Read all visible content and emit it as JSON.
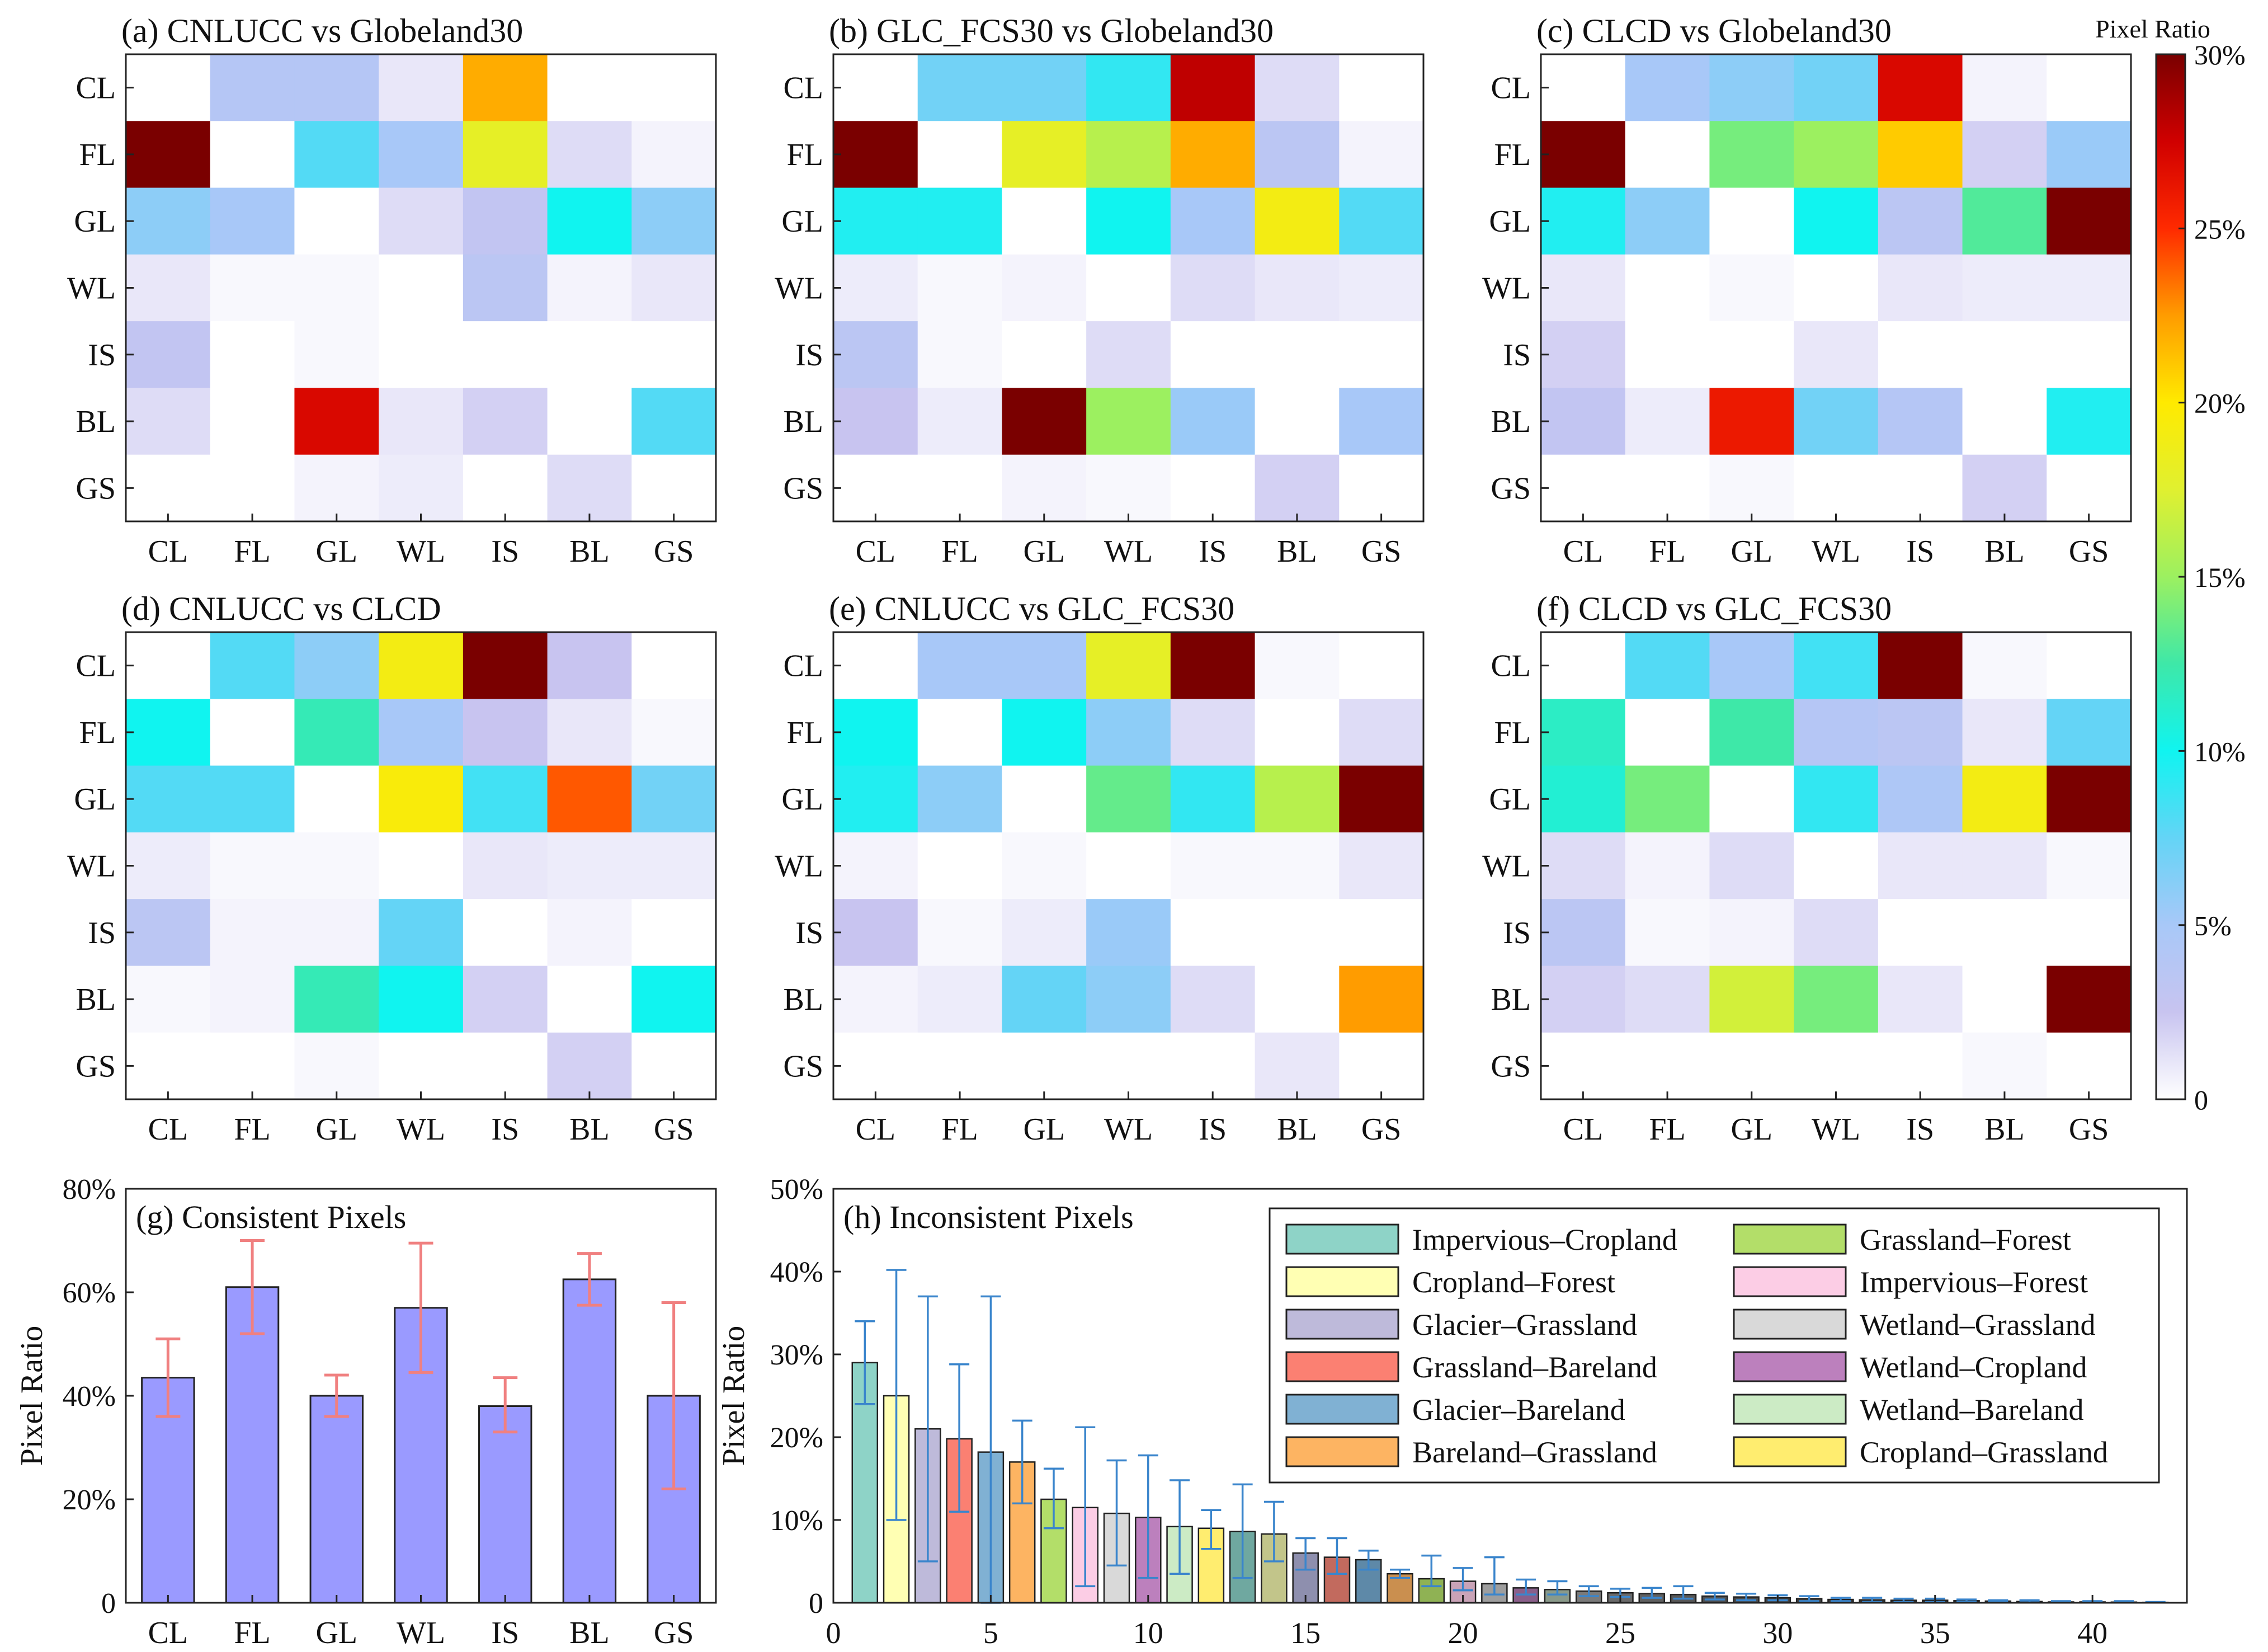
{
  "colors": {
    "gradient": [
      "#ffffff",
      "#c8c4f0",
      "#a8c8f8",
      "#64d4f6",
      "#10f4f0",
      "#3ee8a8",
      "#9cf060",
      "#e0f030",
      "#ffea00",
      "#ff9c00",
      "#ff2a00",
      "#d00000",
      "#7a0000"
    ],
    "bar_g": "#9a9aff",
    "errorbar_g": "#f08080",
    "errorbar_h": "#3a85cc"
  },
  "colorbar": {
    "title": "Pixel Ratio",
    "ticks": [
      "30%",
      "25%",
      "20%",
      "15%",
      "10%",
      "5%",
      "0"
    ],
    "tick_values": [
      30,
      25,
      20,
      15,
      10,
      5,
      0
    ],
    "max": 30
  },
  "chart_data": [
    {
      "type": "heatmap",
      "panel": "a",
      "title": "(a) CNLUCC vs Globeland30",
      "rows": [
        "CL",
        "FL",
        "GL",
        "WL",
        "IS",
        "BL",
        "GS"
      ],
      "cols": [
        "CL",
        "FL",
        "GL",
        "WL",
        "IS",
        "BL",
        "GS"
      ],
      "values": [
        [
          0,
          4,
          4,
          1,
          22,
          0,
          0
        ],
        [
          30,
          0,
          8,
          5,
          18,
          1.5,
          0.5
        ],
        [
          6,
          5,
          0,
          1.5,
          3,
          10,
          6
        ],
        [
          1,
          0.3,
          0.3,
          0,
          3.5,
          0.5,
          1
        ],
        [
          3,
          0,
          0.3,
          0,
          0,
          0,
          0
        ],
        [
          1.5,
          0,
          27,
          1,
          2,
          0,
          8
        ],
        [
          0,
          0,
          0.5,
          0.8,
          0,
          1.5,
          0
        ]
      ]
    },
    {
      "type": "heatmap",
      "panel": "b",
      "title": "(b) GLC_FCS30 vs Globeland30",
      "rows": [
        "CL",
        "FL",
        "GL",
        "WL",
        "IS",
        "BL",
        "GS"
      ],
      "cols": [
        "CL",
        "FL",
        "GL",
        "WL",
        "IS",
        "BL",
        "GS"
      ],
      "values": [
        [
          0,
          7,
          7,
          9,
          28,
          1.5,
          0
        ],
        [
          30,
          0,
          18,
          16,
          22,
          3.5,
          0.5
        ],
        [
          9.5,
          9.5,
          0,
          10,
          5,
          19,
          8
        ],
        [
          0.8,
          0.3,
          0.5,
          0,
          1.5,
          1,
          0.8
        ],
        [
          3.5,
          0.3,
          0,
          1.5,
          0,
          0,
          0
        ],
        [
          2.5,
          0.8,
          30,
          15,
          5.5,
          0,
          5
        ],
        [
          0,
          0,
          0.5,
          0.3,
          0,
          2,
          0
        ]
      ]
    },
    {
      "type": "heatmap",
      "panel": "c",
      "title": "(c) CLCD vs Globeland30",
      "rows": [
        "CL",
        "FL",
        "GL",
        "WL",
        "IS",
        "BL",
        "GS"
      ],
      "cols": [
        "CL",
        "FL",
        "GL",
        "WL",
        "IS",
        "BL",
        "GS"
      ],
      "values": [
        [
          0,
          5,
          6,
          7,
          27,
          0.5,
          0
        ],
        [
          30,
          0,
          14,
          15,
          21,
          2,
          5.5
        ],
        [
          9.5,
          6,
          0,
          10,
          3.5,
          13,
          30
        ],
        [
          1,
          0,
          0.3,
          0,
          1,
          0.8,
          0.8
        ],
        [
          2,
          0,
          0,
          1,
          0,
          0,
          0
        ],
        [
          3,
          0.8,
          26,
          7,
          4,
          0,
          9.5
        ],
        [
          0,
          0,
          0.3,
          0,
          0,
          2,
          0
        ]
      ]
    },
    {
      "type": "heatmap",
      "panel": "d",
      "title": "(d) CNLUCC vs CLCD",
      "rows": [
        "CL",
        "FL",
        "GL",
        "WL",
        "IS",
        "BL",
        "GS"
      ],
      "cols": [
        "CL",
        "FL",
        "GL",
        "WL",
        "IS",
        "BL",
        "GS"
      ],
      "values": [
        [
          0,
          8,
          6,
          19,
          30,
          2.5,
          0
        ],
        [
          10,
          0,
          12,
          5,
          2.5,
          1,
          0.3
        ],
        [
          8,
          8,
          0,
          19.5,
          8.5,
          24,
          7
        ],
        [
          0.8,
          0.3,
          0.3,
          0,
          1,
          0.8,
          0.8
        ],
        [
          3.5,
          0.5,
          0.5,
          7.5,
          0,
          0.5,
          0
        ],
        [
          0.3,
          0.5,
          12,
          10,
          2,
          0,
          10
        ],
        [
          0,
          0,
          0.3,
          0,
          0,
          2,
          0
        ]
      ]
    },
    {
      "type": "heatmap",
      "panel": "e",
      "title": "(e) CNLUCC vs GLC_FCS30",
      "rows": [
        "CL",
        "FL",
        "GL",
        "WL",
        "IS",
        "BL",
        "GS"
      ],
      "cols": [
        "CL",
        "FL",
        "GL",
        "WL",
        "IS",
        "BL",
        "GS"
      ],
      "values": [
        [
          0,
          5,
          5,
          18,
          30,
          0.3,
          0
        ],
        [
          10,
          0,
          10,
          6,
          1.5,
          0,
          1.5
        ],
        [
          9.5,
          6,
          0,
          13.5,
          9,
          16,
          30
        ],
        [
          0.5,
          0,
          0.3,
          0,
          0.3,
          0.3,
          1
        ],
        [
          2.5,
          0.3,
          0.8,
          5.5,
          0,
          0,
          0
        ],
        [
          0.5,
          0.8,
          7.5,
          6,
          1.5,
          0,
          22.5
        ],
        [
          0,
          0,
          0,
          0,
          0,
          1,
          0
        ]
      ]
    },
    {
      "type": "heatmap",
      "panel": "f",
      "title": "(f) CLCD vs GLC_FCS30",
      "rows": [
        "CL",
        "FL",
        "GL",
        "WL",
        "IS",
        "BL",
        "GS"
      ],
      "cols": [
        "CL",
        "FL",
        "GL",
        "WL",
        "IS",
        "BL",
        "GS"
      ],
      "values": [
        [
          0,
          8,
          5,
          8.5,
          30,
          0.3,
          0
        ],
        [
          11.5,
          0,
          12.5,
          4,
          3.5,
          1,
          7.5
        ],
        [
          11,
          14,
          0,
          9,
          4.5,
          19,
          30
        ],
        [
          1.5,
          0.5,
          1.5,
          0,
          1,
          1,
          0.3
        ],
        [
          3.5,
          0.3,
          0.5,
          1.5,
          0,
          0,
          0
        ],
        [
          2,
          1.5,
          17,
          14,
          1,
          0,
          30
        ],
        [
          0,
          0,
          0,
          0,
          0,
          0.3,
          0
        ]
      ]
    },
    {
      "type": "bar",
      "panel": "g",
      "title": "(g) Consistent Pixels",
      "ylabel": "Pixel Ratio",
      "categories": [
        "CL",
        "FL",
        "GL",
        "WL",
        "IS",
        "BL",
        "GS"
      ],
      "values": [
        43.5,
        61,
        40,
        57,
        38,
        62.5,
        40
      ],
      "err_low": [
        36,
        52,
        36,
        44.5,
        33,
        57.5,
        22
      ],
      "err_high": [
        51,
        70,
        44,
        69.5,
        43.5,
        67.5,
        58
      ],
      "ylim": [
        0,
        80
      ],
      "yticks": [
        0,
        20,
        40,
        60,
        80
      ],
      "ytick_labels": [
        "0",
        "20%",
        "40%",
        "60%",
        "80%"
      ]
    },
    {
      "type": "bar",
      "panel": "h",
      "title": "(h) Inconsistent Pixels",
      "ylabel": "Pixel Ratio",
      "x": [
        1,
        2,
        3,
        4,
        5,
        6,
        7,
        8,
        9,
        10,
        11,
        12,
        13,
        14,
        15,
        16,
        17,
        18,
        19,
        20,
        21,
        22,
        23,
        24,
        25,
        26,
        27,
        28,
        29,
        30,
        31,
        32,
        33,
        34,
        35,
        36,
        37,
        38,
        39,
        40,
        41,
        42
      ],
      "values": [
        29,
        25,
        21,
        19.8,
        18.2,
        17,
        12.5,
        11.5,
        10.8,
        10.3,
        9.2,
        9,
        8.6,
        8.3,
        6,
        5.5,
        5.2,
        3.5,
        2.9,
        2.6,
        2.3,
        1.8,
        1.6,
        1.4,
        1.2,
        1.1,
        1,
        0.8,
        0.7,
        0.6,
        0.5,
        0.4,
        0.35,
        0.3,
        0.3,
        0.25,
        0.2,
        0.15,
        0.1,
        0.1,
        0.08,
        0.05
      ],
      "err_low": [
        24,
        10,
        5,
        11,
        0,
        12,
        9,
        2,
        4.5,
        3,
        3.5,
        6.5,
        3,
        5,
        4,
        3.5,
        4,
        3,
        2,
        1.5,
        1,
        1,
        1,
        0.8,
        0.7,
        0.6,
        0.5,
        0.4,
        0.3,
        0.3,
        0.2,
        0.2,
        0.1,
        0.1,
        0.1,
        0.1,
        0.1,
        0.05,
        0.05,
        0.05,
        0.02,
        0.02
      ],
      "err_high": [
        34,
        40.2,
        37,
        28.8,
        37,
        22,
        16.2,
        21.2,
        17.2,
        17.8,
        14.8,
        11.2,
        14.3,
        12.2,
        7.8,
        7.8,
        6.3,
        4,
        5.7,
        4.2,
        5.5,
        2.8,
        2.6,
        2,
        1.7,
        1.8,
        2,
        1.2,
        1.1,
        0.9,
        0.8,
        0.6,
        0.6,
        0.5,
        0.5,
        0.4,
        0.3,
        0.3,
        0.2,
        0.2,
        0.2,
        0.1
      ],
      "colors": [
        "#8ed3c7",
        "#ffffb3",
        "#bebada",
        "#fb8072",
        "#80b1d3",
        "#fdb462",
        "#b3de69",
        "#fccde5",
        "#d9d9d9",
        "#bc80bd",
        "#ccebc5",
        "#ffed6f",
        "#6fa8a0",
        "#c2c58a",
        "#8e8fae",
        "#c26a5e",
        "#5e89a8",
        "#ca8f4f",
        "#8fb254",
        "#c9a3b7",
        "#9e9e9e",
        "#8a5f8a",
        "#8a9a8a",
        "#7a7a7a",
        "#6a6a6a",
        "#606060",
        "#585858",
        "#505050",
        "#4a4a4a",
        "#444444",
        "#404040",
        "#3c3c3c",
        "#383838",
        "#343434",
        "#303030",
        "#2c2c2c",
        "#2a2a2a",
        "#282828",
        "#262626",
        "#242424",
        "#222222",
        "#202020"
      ],
      "ylim": [
        0,
        50
      ],
      "xlim": [
        0,
        43
      ],
      "yticks": [
        0,
        10,
        20,
        30,
        40,
        50
      ],
      "ytick_labels": [
        "0",
        "10%",
        "20%",
        "30%",
        "40%",
        "50%"
      ],
      "xticks": [
        0,
        5,
        10,
        15,
        20,
        25,
        30,
        35,
        40
      ],
      "xtick_labels": [
        "0",
        "5",
        "10",
        "15",
        "20",
        "25",
        "30",
        "35",
        "40"
      ],
      "legend_position": "top-right",
      "legend": [
        {
          "label": "Impervious–Cropland",
          "color": "#8ed3c7"
        },
        {
          "label": "Grassland–Forest",
          "color": "#b3de69"
        },
        {
          "label": "Cropland–Forest",
          "color": "#ffffb3"
        },
        {
          "label": "Impervious–Forest",
          "color": "#fccde5"
        },
        {
          "label": "Glacier–Grassland",
          "color": "#bebada"
        },
        {
          "label": "Wetland–Grassland",
          "color": "#d9d9d9"
        },
        {
          "label": "Grassland–Bareland",
          "color": "#fb8072"
        },
        {
          "label": "Wetland–Cropland",
          "color": "#bc80bd"
        },
        {
          "label": "Glacier–Bareland",
          "color": "#80b1d3"
        },
        {
          "label": "Wetland–Bareland",
          "color": "#ccebc5"
        },
        {
          "label": "Bareland–Grassland",
          "color": "#fdb462"
        },
        {
          "label": "Cropland–Grassland",
          "color": "#ffed6f"
        }
      ]
    }
  ]
}
